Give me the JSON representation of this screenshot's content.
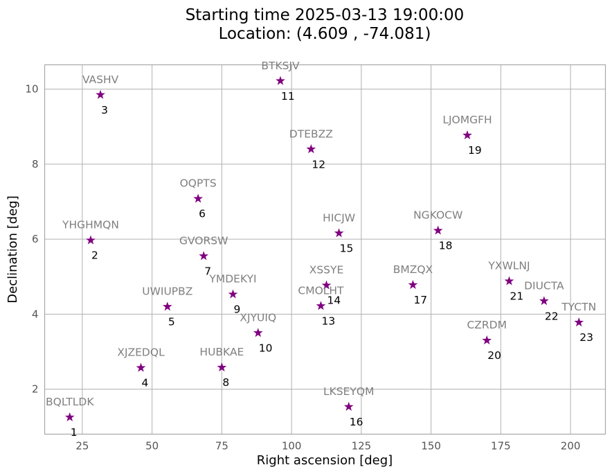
{
  "chart_data": {
    "type": "scatter",
    "title_line1": "Starting time 2025-03-13 19:00:00",
    "title_line2": "Location: (4.609 , -74.081)",
    "xlabel": "Right ascension [deg]",
    "ylabel": "Declination [deg]",
    "xlim": [
      11.5,
      212.5
    ],
    "ylim": [
      0.8,
      10.65
    ],
    "xticks": [
      25,
      50,
      75,
      100,
      125,
      150,
      175,
      200
    ],
    "yticks": [
      2,
      4,
      6,
      8,
      10
    ],
    "grid": true,
    "marker": "star",
    "marker_color": "#800080",
    "name_color": "#7f7f7f",
    "points": [
      {
        "id": "1",
        "name": "BQLTLDK",
        "ra": 20.5,
        "dec": 1.25
      },
      {
        "id": "2",
        "name": "YHGHMQN",
        "ra": 28.0,
        "dec": 5.97
      },
      {
        "id": "3",
        "name": "VASHV",
        "ra": 31.5,
        "dec": 9.85
      },
      {
        "id": "4",
        "name": "XJZEDQL",
        "ra": 46.0,
        "dec": 2.57
      },
      {
        "id": "5",
        "name": "UWIUPBZ",
        "ra": 55.5,
        "dec": 4.2
      },
      {
        "id": "6",
        "name": "OQPTS",
        "ra": 66.5,
        "dec": 7.08
      },
      {
        "id": "7",
        "name": "GVORSW",
        "ra": 68.5,
        "dec": 5.55
      },
      {
        "id": "8",
        "name": "HUBKAE",
        "ra": 75.0,
        "dec": 2.58
      },
      {
        "id": "9",
        "name": "YMDEKYI",
        "ra": 79.0,
        "dec": 4.53
      },
      {
        "id": "10",
        "name": "XJYUIQ",
        "ra": 88.0,
        "dec": 3.5
      },
      {
        "id": "11",
        "name": "BTKSJV",
        "ra": 96.0,
        "dec": 10.22
      },
      {
        "id": "12",
        "name": "DTEBZZ",
        "ra": 107.0,
        "dec": 8.4
      },
      {
        "id": "13",
        "name": "CMOLHT",
        "ra": 110.5,
        "dec": 4.22
      },
      {
        "id": "14",
        "name": "XSSYE",
        "ra": 112.5,
        "dec": 4.77
      },
      {
        "id": "15",
        "name": "HICJW",
        "ra": 117.0,
        "dec": 6.16
      },
      {
        "id": "16",
        "name": "LKSEYQM",
        "ra": 120.5,
        "dec": 1.53
      },
      {
        "id": "17",
        "name": "BMZQX",
        "ra": 143.5,
        "dec": 4.78
      },
      {
        "id": "18",
        "name": "NGKOCW",
        "ra": 152.5,
        "dec": 6.23
      },
      {
        "id": "19",
        "name": "LJOMGFH",
        "ra": 163.0,
        "dec": 8.77
      },
      {
        "id": "20",
        "name": "CZRDM",
        "ra": 170.0,
        "dec": 3.3
      },
      {
        "id": "21",
        "name": "YXWLNJ",
        "ra": 178.0,
        "dec": 4.88
      },
      {
        "id": "22",
        "name": "DIUCTA",
        "ra": 190.5,
        "dec": 4.35
      },
      {
        "id": "23",
        "name": "TYCTN",
        "ra": 203.0,
        "dec": 3.78
      }
    ]
  }
}
